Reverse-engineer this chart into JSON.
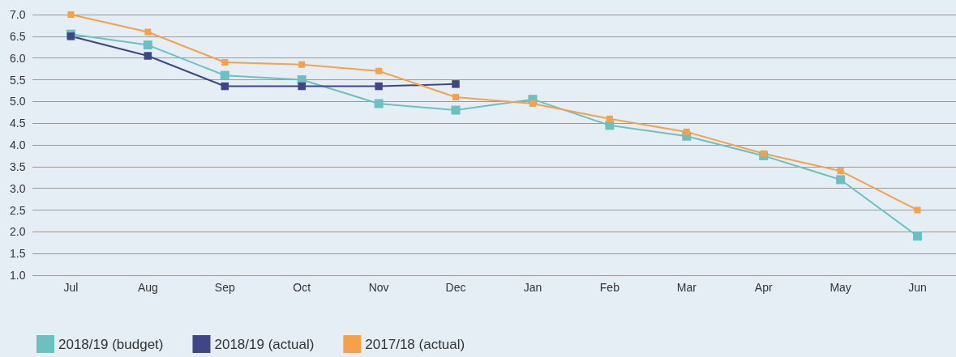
{
  "chart_data": {
    "type": "line",
    "categories": [
      "Jul",
      "Aug",
      "Sep",
      "Oct",
      "Nov",
      "Dec",
      "Jan",
      "Feb",
      "Mar",
      "Apr",
      "May",
      "Jun"
    ],
    "series": [
      {
        "name": "2018/19 (budget)",
        "color": "#6cc0c0",
        "values": [
          6.55,
          6.3,
          5.6,
          5.5,
          4.95,
          4.8,
          5.05,
          4.45,
          4.2,
          3.75,
          3.2,
          1.9
        ]
      },
      {
        "name": "2018/19 (actual)",
        "color": "#3f4585",
        "values": [
          6.5,
          6.05,
          5.35,
          5.35,
          5.35,
          5.4,
          null,
          null,
          null,
          null,
          null,
          null
        ]
      },
      {
        "name": "2017/18 (actual)",
        "color": "#f5a04a",
        "values": [
          7.0,
          6.6,
          5.9,
          5.85,
          5.7,
          5.1,
          4.95,
          4.6,
          4.3,
          3.8,
          3.4,
          2.5
        ]
      }
    ],
    "ylim": [
      1.0,
      7.0
    ],
    "yticks": [
      {
        "value": 1,
        "label": "1.0"
      },
      {
        "value": 1.5,
        "label": "1.5"
      },
      {
        "value": 2,
        "label": "2.0"
      },
      {
        "value": 2.5,
        "label": "2.5"
      },
      {
        "value": 3,
        "label": "3.0"
      },
      {
        "value": 3.5,
        "label": "3.5"
      },
      {
        "value": 4,
        "label": "4.0"
      },
      {
        "value": 4.5,
        "label": "4.5"
      },
      {
        "value": 5,
        "label": "5.0"
      },
      {
        "value": 5.5,
        "label": "5.5"
      },
      {
        "value": 6,
        "label": "6.0"
      },
      {
        "value": 6.5,
        "label": "6.5"
      },
      {
        "value": 7,
        "label": "7.0"
      }
    ],
    "grid": "y",
    "legend": "bottom left",
    "marker": "square"
  }
}
